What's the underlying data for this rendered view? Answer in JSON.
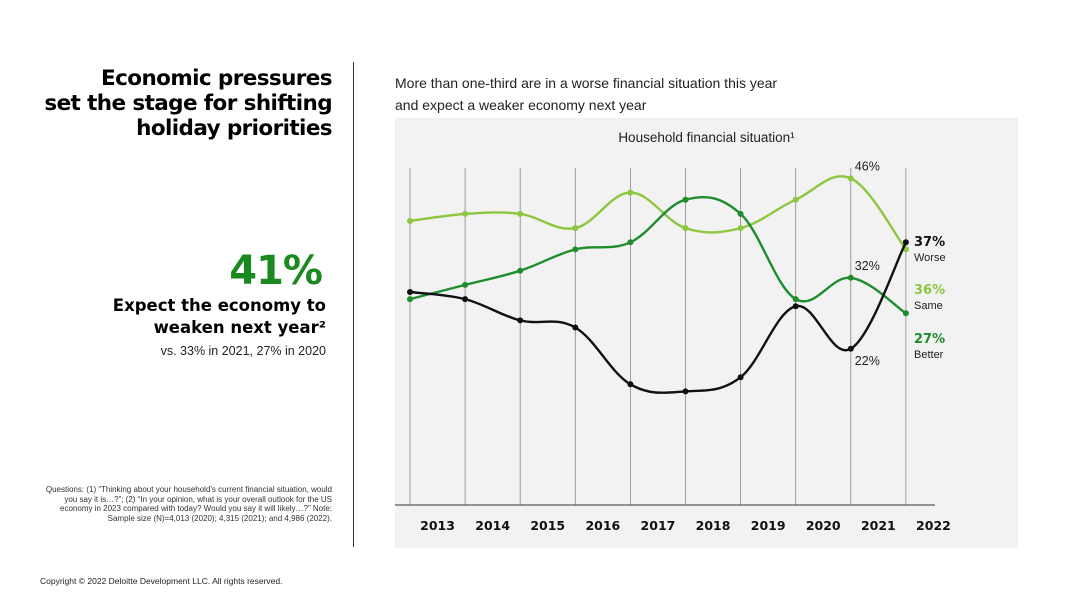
{
  "left": {
    "title_lines": [
      "Economic pressures",
      "set the stage for shifting",
      "holiday priorities"
    ],
    "stat_value": "41%",
    "stat_label_lines": [
      "Expect the economy to",
      "weaken next year²"
    ],
    "stat_sub": "vs. 33% in 2021, 27% in 2020",
    "note": "Questions: (1) “Thinking about your household's current financial situation, would you say it is…?”; (2) “In your opinion, what is your overall outlook for the US economy in 2023 compared with today? Would you say it will likely…?” Note: Sample size (N)=4,013 (2020); 4,315 (2021); and 4,986 (2022).",
    "copyright": "Copyright © 2022 Deloitte Development LLC. All rights reserved."
  },
  "right": {
    "headline_lines": [
      "More than one-third are in a worse financial situation this year",
      "and expect a weaker economy next year"
    ]
  },
  "chart_data": {
    "type": "line",
    "title": "Household financial situation¹",
    "categories": [
      "2013",
      "2014",
      "2015",
      "2016",
      "2017",
      "2018",
      "2019",
      "2020",
      "2021",
      "2022"
    ],
    "ylim": [
      0,
      60
    ],
    "series": [
      {
        "name": "Worse",
        "color": "#111111",
        "values": [
          30,
          29,
          26,
          25,
          17,
          16,
          18,
          28,
          22,
          37
        ]
      },
      {
        "name": "Same",
        "color": "#8dc63f",
        "values": [
          40,
          41,
          41,
          39,
          44,
          39,
          39,
          43,
          46,
          36
        ]
      },
      {
        "name": "Better",
        "color": "#1f8c2d",
        "values": [
          29,
          31,
          33,
          36,
          37,
          43,
          41,
          29,
          32,
          27
        ]
      }
    ],
    "point_labels": [
      {
        "series": "Same",
        "index": 8,
        "text": "46%"
      },
      {
        "series": "Better",
        "index": 8,
        "text": "32%"
      },
      {
        "series": "Worse",
        "index": 8,
        "text": "22%"
      }
    ],
    "end_labels": [
      {
        "series": "Worse",
        "value_text": "37%",
        "label": "Worse",
        "color": "#111111"
      },
      {
        "series": "Same",
        "value_text": "36%",
        "label": "Same",
        "color": "#8dc63f"
      },
      {
        "series": "Better",
        "value_text": "27%",
        "label": "Better",
        "color": "#1f8c2d"
      }
    ],
    "grid": true
  }
}
